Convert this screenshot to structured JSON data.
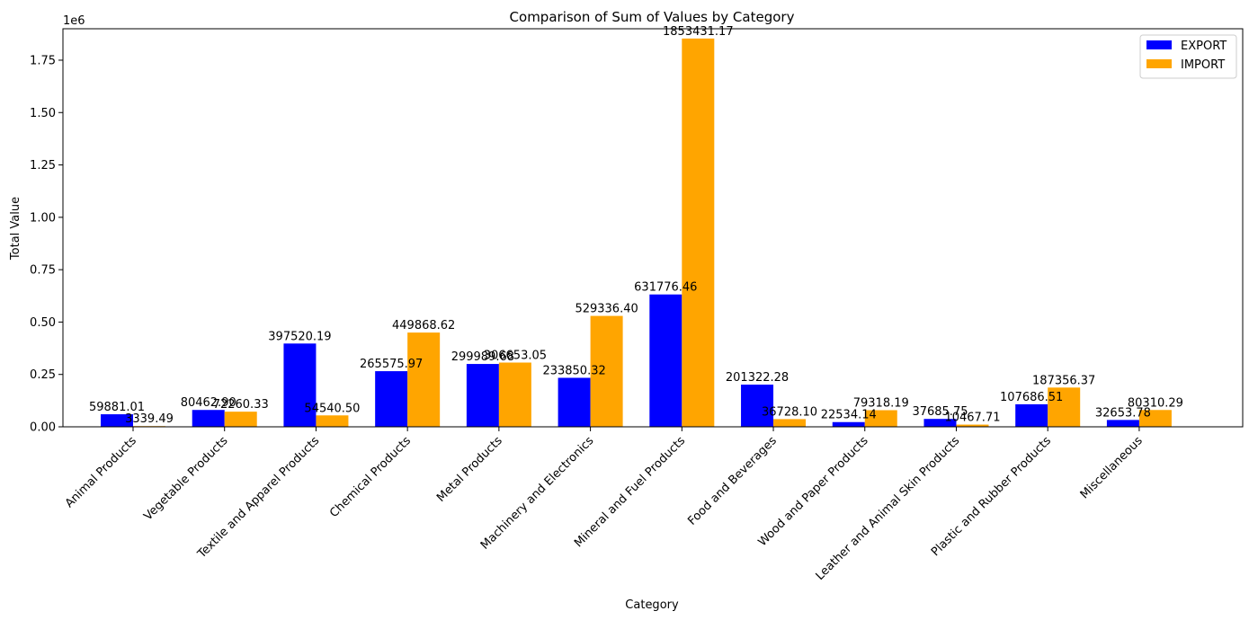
{
  "chart_data": {
    "type": "bar",
    "title": "Comparison of Sum of Values by Category",
    "xlabel": "Category",
    "ylabel": "Total Value",
    "y_scale_label": "1e6",
    "ylim": [
      0,
      1.9
    ],
    "yticks": [
      "0.00",
      "0.25",
      "0.50",
      "0.75",
      "1.00",
      "1.25",
      "1.50",
      "1.75"
    ],
    "legend_position": "top-right",
    "grid": false,
    "categories": [
      "Animal Products",
      "Vegetable Products",
      "Textile and Apparel Products",
      "Chemical Products",
      "Metal Products",
      "Machinery and Electronics",
      "Mineral and Fuel Products",
      "Food and Beverages",
      "Wood and Paper Products",
      "Leather and Animal Skin Products",
      "Plastic and Rubber Products",
      "Miscellaneous"
    ],
    "series": [
      {
        "name": "EXPORT",
        "color": "#0000ff",
        "values": [
          59881.01,
          80462.9,
          397520.19,
          265575.97,
          299989.68,
          233850.32,
          631776.46,
          201322.28,
          22534.14,
          37685.75,
          107686.51,
          32653.78
        ],
        "labels": [
          "59881.01",
          "80462.90",
          "397520.19",
          "265575.97",
          "299989.68",
          "233850.32",
          "631776.46",
          "201322.28",
          "22534.14",
          "37685.75",
          "107686.51",
          "32653.78"
        ]
      },
      {
        "name": "IMPORT",
        "color": "#ffa500",
        "values": [
          3339.49,
          72260.33,
          54540.5,
          449868.62,
          306653.05,
          529336.4,
          1853431.17,
          36728.1,
          79318.19,
          10467.71,
          187356.37,
          80310.29
        ],
        "labels": [
          "3339.49",
          "72260.33",
          "54540.50",
          "449868.62",
          "306653.05",
          "529336.40",
          "1853431.17",
          "36728.10",
          "79318.19",
          "10467.71",
          "187356.37",
          "80310.29"
        ]
      }
    ]
  }
}
